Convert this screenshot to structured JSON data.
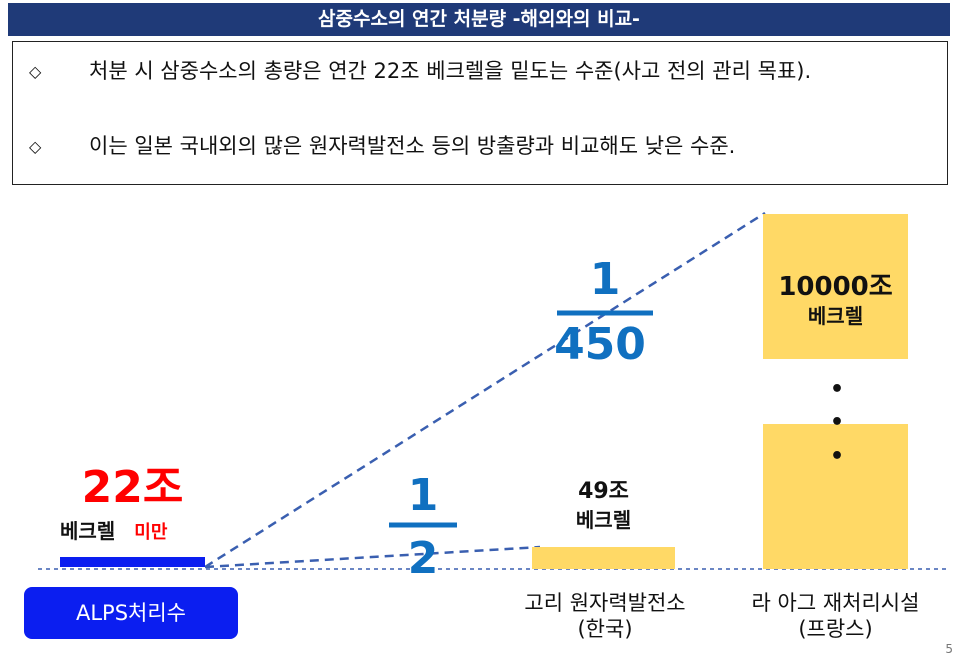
{
  "slide": {
    "title": "삼중수소의 연간 처분량 -해외와의 비교-",
    "page_number": "5"
  },
  "bullets": [
    {
      "marker": "◇",
      "text": "처분 시 삼중수소의 총량은 연간 22조 베크렐을 밑도는 수준(사고 전의 관리 목표)."
    },
    {
      "marker": "◇",
      "text": "이는 일본 국내외의 많은 원자력발전소 등의 방출량과 비교해도 낮은 수준."
    }
  ],
  "alps": {
    "amount": "22조",
    "unit": "베크렐",
    "qualifier": "미만",
    "label": "ALPS처리수"
  },
  "kori": {
    "amount": "49조",
    "unit": "베크렐",
    "name": "고리 원자력발전소",
    "country": "(한국)"
  },
  "la_hague": {
    "amount": "10000조",
    "unit": "베크렐",
    "name": "라 아그 재처리시설",
    "country": "(프랑스)",
    "ellipsis": "•"
  },
  "ratios": {
    "half": {
      "numerator": "1",
      "denominator": "2"
    },
    "small": {
      "numerator": "1",
      "denominator": "450"
    }
  },
  "colors": {
    "title_bg": "#1f3a78",
    "alps_bar": "#0b1ef0",
    "yellow_box": "#ffd966",
    "fraction_blue": "#1070c0",
    "dashed_line": "#3a5fb0",
    "emphasis_red": "#ff0000"
  }
}
